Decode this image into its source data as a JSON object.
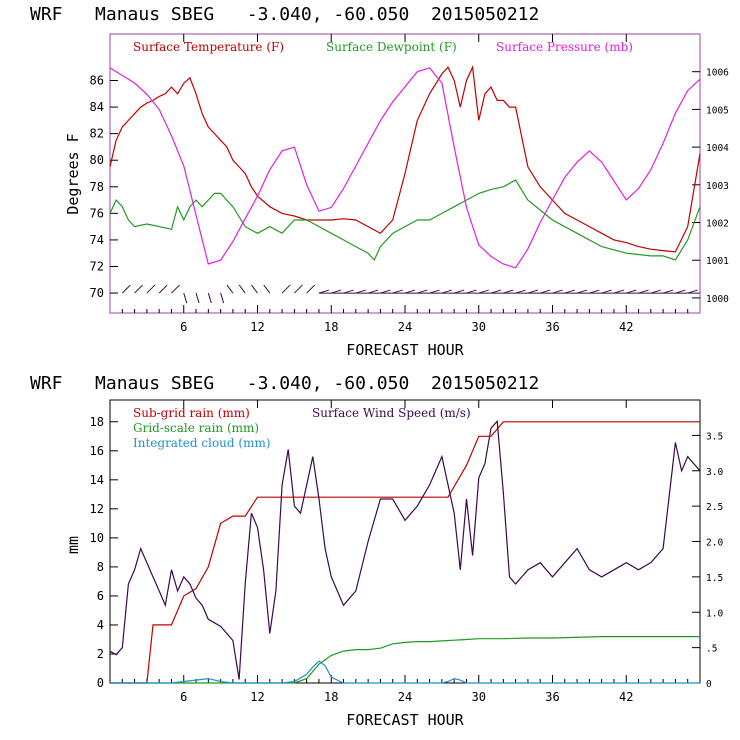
{
  "chart_data": [
    {
      "type": "line",
      "title": "WRF   Manaus SBEG   -3.040, -60.050  2015050212",
      "xlabel": "FORECAST HOUR",
      "ylabel": "Degrees F",
      "xlim": [
        0,
        48
      ],
      "ylim": [
        68.5,
        89.5
      ],
      "y2lim": [
        999.6,
        1007.0
      ],
      "x_ticks": [
        6,
        12,
        18,
        24,
        30,
        36,
        42
      ],
      "y_ticks": [
        70,
        72,
        74,
        76,
        78,
        80,
        82,
        84,
        86
      ],
      "y2_ticks": [
        1000,
        1001,
        1002,
        1003,
        1004,
        1005,
        1006
      ],
      "legend_position": "top-left",
      "colors": {
        "temperature": "#c00000",
        "dewpoint": "#229922",
        "pressure": "#e020e0",
        "wind": "#3a0a4a"
      },
      "series": [
        {
          "name": "Surface Temperature (F)",
          "axis": "left",
          "x": [
            0,
            0.5,
            1,
            1.5,
            2,
            2.5,
            3,
            3.5,
            4,
            4.5,
            5,
            5.5,
            6,
            6.5,
            7,
            7.5,
            8,
            8.5,
            9,
            9.5,
            10,
            10.5,
            11,
            11.5,
            12,
            13,
            14,
            15,
            16,
            17,
            18,
            19,
            20,
            21,
            22,
            23,
            24,
            25,
            26,
            27,
            27.5,
            28,
            28.5,
            29,
            29.5,
            30,
            30.5,
            31,
            31.5,
            32,
            32.5,
            33,
            34,
            35,
            36,
            37,
            38,
            39,
            40,
            41,
            42,
            43,
            44,
            45,
            46,
            47,
            48
          ],
          "values": [
            79.5,
            81.5,
            82.5,
            83.0,
            83.5,
            84.0,
            84.3,
            84.5,
            84.8,
            85.0,
            85.5,
            85.0,
            85.8,
            86.2,
            85.0,
            83.5,
            82.5,
            82.0,
            81.5,
            81.0,
            80.0,
            79.5,
            79.0,
            78.0,
            77.3,
            76.5,
            76.0,
            75.8,
            75.5,
            75.5,
            75.5,
            75.6,
            75.5,
            75.0,
            74.5,
            75.5,
            79.0,
            83.0,
            85.0,
            86.5,
            87.0,
            86.0,
            84.0,
            86.0,
            87.0,
            83.0,
            85.0,
            85.5,
            84.5,
            84.5,
            84.0,
            84.0,
            79.5,
            78.0,
            77.0,
            76.0,
            75.5,
            75.0,
            74.5,
            74.0,
            73.8,
            73.5,
            73.3,
            73.2,
            73.1,
            75.0,
            80.5
          ]
        },
        {
          "name": "Surface Dewpoint (F)",
          "axis": "left",
          "x": [
            0,
            0.5,
            1,
            1.5,
            2,
            3,
            4,
            5,
            5.5,
            6,
            6.5,
            7,
            7.5,
            8,
            8.5,
            9,
            9.5,
            10,
            11,
            12,
            13,
            14,
            15,
            16,
            17,
            18,
            19,
            20,
            21,
            21.5,
            22,
            23,
            24,
            25,
            26,
            27,
            28,
            29,
            30,
            31,
            32,
            33,
            34,
            36,
            38,
            40,
            42,
            44,
            45,
            46,
            47,
            48
          ],
          "values": [
            76.0,
            77.0,
            76.5,
            75.5,
            75.0,
            75.2,
            75.0,
            74.8,
            76.5,
            75.5,
            76.5,
            77.0,
            76.5,
            77.0,
            77.5,
            77.5,
            77.0,
            76.5,
            75.0,
            74.5,
            75.0,
            74.5,
            75.5,
            75.5,
            75.0,
            74.5,
            74.0,
            73.5,
            73.0,
            72.5,
            73.5,
            74.5,
            75.0,
            75.5,
            75.5,
            76.0,
            76.5,
            77.0,
            77.5,
            77.8,
            78.0,
            78.5,
            77.0,
            75.5,
            74.5,
            73.5,
            73.0,
            72.8,
            72.8,
            72.5,
            74.0,
            76.5
          ]
        },
        {
          "name": "Surface Pressure (mb)",
          "axis": "right",
          "x": [
            0,
            1,
            2,
            3,
            4,
            5,
            6,
            7,
            8,
            9,
            10,
            11,
            12,
            13,
            14,
            15,
            16,
            17,
            18,
            19,
            20,
            21,
            22,
            23,
            24,
            25,
            26,
            27,
            28,
            29,
            30,
            31,
            32,
            33,
            34,
            35,
            36,
            37,
            38,
            39,
            40,
            41,
            42,
            43,
            44,
            45,
            46,
            47,
            48
          ],
          "values": [
            1006.1,
            1005.9,
            1005.7,
            1005.4,
            1005.0,
            1004.3,
            1003.5,
            1002.2,
            1000.9,
            1001.0,
            1001.5,
            1002.1,
            1002.7,
            1003.4,
            1003.9,
            1004.0,
            1003.0,
            1002.3,
            1002.4,
            1002.9,
            1003.5,
            1004.1,
            1004.7,
            1005.2,
            1005.6,
            1006.0,
            1006.1,
            1005.7,
            1004.0,
            1002.4,
            1001.4,
            1001.1,
            1000.9,
            1000.8,
            1001.3,
            1002.0,
            1002.6,
            1003.2,
            1003.6,
            1003.9,
            1003.6,
            1003.1,
            1002.6,
            1002.9,
            1003.4,
            1004.1,
            1004.9,
            1005.5,
            1005.8
          ]
        }
      ],
      "wind_barbs_shown": true
    },
    {
      "type": "line",
      "title": "WRF   Manaus SBEG   -3.040, -60.050  2015050212",
      "xlabel": "FORECAST HOUR",
      "ylabel": "mm",
      "xlim": [
        0,
        48
      ],
      "ylim": [
        0,
        19.5
      ],
      "y2lim": [
        0,
        4.0
      ],
      "x_ticks": [
        6,
        12,
        18,
        24,
        30,
        36,
        42
      ],
      "y_ticks": [
        0,
        2,
        4,
        6,
        8,
        10,
        12,
        14,
        16,
        18
      ],
      "y2_ticks": [
        "0",
        ".5",
        "1.0",
        "1.5",
        "2.0",
        "2.5",
        "3.0",
        "3.5"
      ],
      "y2_tick_values": [
        0,
        0.5,
        1.0,
        1.5,
        2.0,
        2.5,
        3.0,
        3.5
      ],
      "legend_position": "top-left",
      "series": [
        {
          "name": "Sub-grid rain (mm)",
          "axis": "left",
          "x": [
            0,
            3,
            3.5,
            4,
            5,
            6,
            7,
            8,
            9,
            10,
            11,
            12,
            13,
            27.5,
            29,
            30,
            31,
            32,
            48
          ],
          "values": [
            0,
            0,
            4,
            4,
            4,
            6,
            6.5,
            8,
            11,
            11.5,
            11.5,
            12.8,
            12.8,
            12.8,
            15,
            17,
            17,
            18,
            18
          ]
        },
        {
          "name": "Surface Wind Speed (m/s)",
          "axis": "right",
          "x": [
            0,
            0.5,
            1,
            1.5,
            2,
            2.5,
            3,
            3.5,
            4,
            4.5,
            5,
            5.5,
            6,
            6.5,
            7,
            7.5,
            8,
            9,
            10,
            10.5,
            11,
            11.5,
            12,
            12.5,
            13,
            13.5,
            14,
            14.5,
            15,
            15.5,
            16,
            16.5,
            17,
            17.5,
            18,
            19,
            20,
            21,
            22,
            23,
            24,
            25,
            26,
            27,
            28,
            28.5,
            29,
            29.5,
            30,
            30.5,
            31,
            31.5,
            32,
            32.5,
            33,
            34,
            35,
            36,
            37,
            38,
            39,
            40,
            41,
            42,
            43,
            44,
            45,
            46,
            46.5,
            47,
            48
          ],
          "values": [
            0.45,
            0.4,
            0.5,
            1.4,
            1.6,
            1.9,
            1.7,
            1.5,
            1.3,
            1.1,
            1.6,
            1.3,
            1.5,
            1.4,
            1.2,
            1.1,
            0.9,
            0.8,
            0.6,
            0.05,
            1.4,
            2.4,
            2.2,
            1.6,
            0.7,
            1.3,
            2.8,
            3.3,
            2.5,
            2.4,
            2.8,
            3.2,
            2.6,
            1.9,
            1.5,
            1.1,
            1.3,
            2.0,
            2.6,
            2.6,
            2.3,
            2.5,
            2.8,
            3.2,
            2.4,
            1.6,
            2.6,
            1.8,
            2.9,
            3.1,
            3.6,
            3.7,
            2.7,
            1.5,
            1.4,
            1.6,
            1.7,
            1.5,
            1.7,
            1.9,
            1.6,
            1.5,
            1.6,
            1.7,
            1.6,
            1.7,
            1.9,
            3.4,
            3.0,
            3.2,
            3.0
          ]
        },
        {
          "name": "Grid-scale rain (mm)",
          "axis": "left",
          "x": [
            0,
            15,
            16,
            17,
            18,
            19,
            20,
            21,
            22,
            23,
            24,
            25,
            26,
            27,
            28,
            29,
            30,
            32,
            34,
            36,
            40,
            44,
            48
          ],
          "values": [
            0,
            0,
            0.3,
            1.3,
            1.9,
            2.2,
            2.3,
            2.3,
            2.4,
            2.7,
            2.8,
            2.85,
            2.85,
            2.9,
            2.95,
            3.0,
            3.05,
            3.05,
            3.1,
            3.1,
            3.2,
            3.2,
            3.2
          ]
        },
        {
          "name": "Integrated cloud (mm)",
          "axis": "left",
          "x": [
            0,
            5,
            6,
            7,
            8,
            9,
            10,
            14,
            15,
            16,
            16.5,
            17,
            17.5,
            18,
            19,
            27,
            27.5,
            28,
            28.5,
            29,
            48
          ],
          "values": [
            0,
            0,
            0.1,
            0.2,
            0.3,
            0.1,
            0,
            0,
            0.1,
            0.6,
            1.1,
            1.5,
            1.2,
            0.4,
            0,
            0,
            0.1,
            0.3,
            0.2,
            0,
            0
          ]
        }
      ]
    }
  ]
}
